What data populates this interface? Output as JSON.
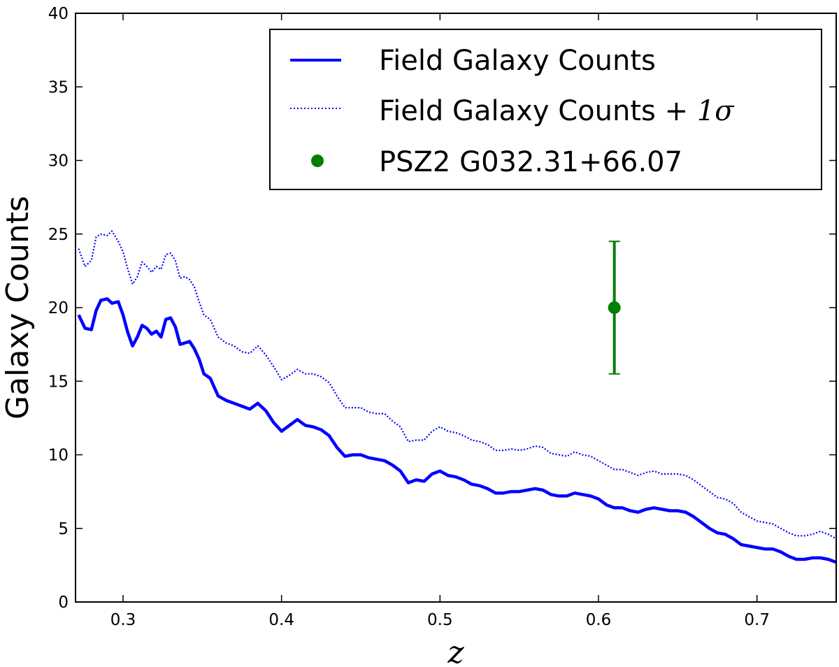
{
  "chart_data": {
    "type": "line",
    "xlabel": "z",
    "ylabel": "Galaxy Counts",
    "xlim": [
      0.27,
      0.75
    ],
    "ylim": [
      0,
      40
    ],
    "xticks": [
      0.3,
      0.4,
      0.5,
      0.6,
      0.7
    ],
    "xtick_labels": [
      "0.3",
      "0.4",
      "0.5",
      "0.6",
      "0.7"
    ],
    "yticks": [
      0,
      5,
      10,
      15,
      20,
      25,
      30,
      35,
      40
    ],
    "ytick_labels": [
      "0",
      "5",
      "10",
      "15",
      "20",
      "25",
      "30",
      "35",
      "40"
    ],
    "grid": false,
    "legend_position": "top-right",
    "series": [
      {
        "name": "Field Galaxy Counts",
        "style": "solid",
        "color": "#0000ff",
        "x": [
          0.272,
          0.276,
          0.28,
          0.283,
          0.286,
          0.29,
          0.293,
          0.297,
          0.3,
          0.303,
          0.306,
          0.309,
          0.312,
          0.315,
          0.318,
          0.321,
          0.324,
          0.327,
          0.33,
          0.333,
          0.336,
          0.339,
          0.342,
          0.345,
          0.348,
          0.351,
          0.355,
          0.36,
          0.365,
          0.37,
          0.375,
          0.38,
          0.385,
          0.39,
          0.395,
          0.4,
          0.405,
          0.41,
          0.415,
          0.42,
          0.425,
          0.43,
          0.435,
          0.44,
          0.445,
          0.45,
          0.455,
          0.46,
          0.465,
          0.47,
          0.475,
          0.48,
          0.485,
          0.49,
          0.495,
          0.5,
          0.505,
          0.51,
          0.515,
          0.52,
          0.525,
          0.53,
          0.535,
          0.54,
          0.545,
          0.55,
          0.555,
          0.56,
          0.565,
          0.57,
          0.575,
          0.58,
          0.585,
          0.59,
          0.595,
          0.6,
          0.605,
          0.61,
          0.615,
          0.62,
          0.625,
          0.63,
          0.635,
          0.64,
          0.645,
          0.65,
          0.655,
          0.66,
          0.665,
          0.67,
          0.675,
          0.68,
          0.685,
          0.69,
          0.695,
          0.7,
          0.705,
          0.71,
          0.715,
          0.72,
          0.725,
          0.73,
          0.735,
          0.74,
          0.745,
          0.75
        ],
        "y": [
          19.5,
          18.6,
          18.5,
          19.8,
          20.5,
          20.6,
          20.3,
          20.4,
          19.5,
          18.3,
          17.4,
          18.0,
          18.8,
          18.6,
          18.2,
          18.4,
          18.0,
          19.2,
          19.3,
          18.7,
          17.5,
          17.6,
          17.7,
          17.2,
          16.5,
          15.5,
          15.2,
          14.0,
          13.7,
          13.5,
          13.3,
          13.1,
          13.5,
          13.0,
          12.2,
          11.6,
          12.0,
          12.4,
          12.0,
          11.9,
          11.7,
          11.3,
          10.5,
          9.9,
          10.0,
          10.0,
          9.8,
          9.7,
          9.6,
          9.3,
          8.9,
          8.1,
          8.3,
          8.2,
          8.7,
          8.9,
          8.6,
          8.5,
          8.3,
          8.0,
          7.9,
          7.7,
          7.4,
          7.4,
          7.5,
          7.5,
          7.6,
          7.7,
          7.6,
          7.3,
          7.2,
          7.2,
          7.4,
          7.3,
          7.2,
          7.0,
          6.6,
          6.4,
          6.4,
          6.2,
          6.1,
          6.3,
          6.4,
          6.3,
          6.2,
          6.2,
          6.1,
          5.8,
          5.4,
          5.0,
          4.7,
          4.6,
          4.3,
          3.9,
          3.8,
          3.7,
          3.6,
          3.6,
          3.4,
          3.1,
          2.9,
          2.9,
          3.0,
          3.0,
          2.9,
          2.7
        ]
      },
      {
        "name": "Field Galaxy Counts + 1σ",
        "style": "dotted",
        "color": "#0000ff",
        "x": [
          0.272,
          0.276,
          0.28,
          0.283,
          0.286,
          0.29,
          0.293,
          0.297,
          0.3,
          0.303,
          0.306,
          0.309,
          0.312,
          0.315,
          0.318,
          0.321,
          0.324,
          0.327,
          0.33,
          0.333,
          0.336,
          0.339,
          0.342,
          0.345,
          0.348,
          0.351,
          0.355,
          0.36,
          0.365,
          0.37,
          0.375,
          0.38,
          0.385,
          0.39,
          0.395,
          0.4,
          0.405,
          0.41,
          0.415,
          0.42,
          0.425,
          0.43,
          0.435,
          0.44,
          0.445,
          0.45,
          0.455,
          0.46,
          0.465,
          0.47,
          0.475,
          0.48,
          0.485,
          0.49,
          0.495,
          0.5,
          0.505,
          0.51,
          0.515,
          0.52,
          0.525,
          0.53,
          0.535,
          0.54,
          0.545,
          0.55,
          0.555,
          0.56,
          0.565,
          0.57,
          0.575,
          0.58,
          0.585,
          0.59,
          0.595,
          0.6,
          0.605,
          0.61,
          0.615,
          0.62,
          0.625,
          0.63,
          0.635,
          0.64,
          0.645,
          0.65,
          0.655,
          0.66,
          0.665,
          0.67,
          0.675,
          0.68,
          0.685,
          0.69,
          0.695,
          0.7,
          0.705,
          0.71,
          0.715,
          0.72,
          0.725,
          0.73,
          0.735,
          0.74,
          0.745,
          0.75
        ],
        "y": [
          24.0,
          22.8,
          23.2,
          24.8,
          25.0,
          24.9,
          25.2,
          24.5,
          23.8,
          22.6,
          21.6,
          22.1,
          23.1,
          22.8,
          22.4,
          22.8,
          22.6,
          23.6,
          23.7,
          23.2,
          22.0,
          22.1,
          21.9,
          21.4,
          20.4,
          19.5,
          19.2,
          18.0,
          17.6,
          17.4,
          17.0,
          16.9,
          17.4,
          16.8,
          16.0,
          15.1,
          15.4,
          15.8,
          15.5,
          15.5,
          15.3,
          14.9,
          14.0,
          13.2,
          13.2,
          13.2,
          12.9,
          12.8,
          12.8,
          12.3,
          11.9,
          10.9,
          11.0,
          11.0,
          11.6,
          11.9,
          11.6,
          11.5,
          11.3,
          11.0,
          10.9,
          10.7,
          10.3,
          10.3,
          10.4,
          10.3,
          10.4,
          10.6,
          10.5,
          10.1,
          10.0,
          9.9,
          10.2,
          10.0,
          9.9,
          9.6,
          9.3,
          9.0,
          9.0,
          8.8,
          8.6,
          8.8,
          8.9,
          8.7,
          8.7,
          8.7,
          8.6,
          8.3,
          7.9,
          7.5,
          7.1,
          7.0,
          6.7,
          6.1,
          5.8,
          5.5,
          5.4,
          5.3,
          5.0,
          4.7,
          4.5,
          4.5,
          4.6,
          4.8,
          4.6,
          4.3
        ]
      },
      {
        "name": "PSZ2 G032.31+66.07",
        "style": "errorbar",
        "color": "#008000",
        "x": [
          0.61
        ],
        "y": [
          20.0
        ],
        "yerr_low": [
          4.5
        ],
        "yerr_high": [
          4.5
        ]
      }
    ]
  },
  "legend": {
    "entry1": "Field Galaxy Counts",
    "entry2_prefix": "Field Galaxy Counts + ",
    "entry2_math": "1σ",
    "entry3": "PSZ2 G032.31+66.07"
  }
}
